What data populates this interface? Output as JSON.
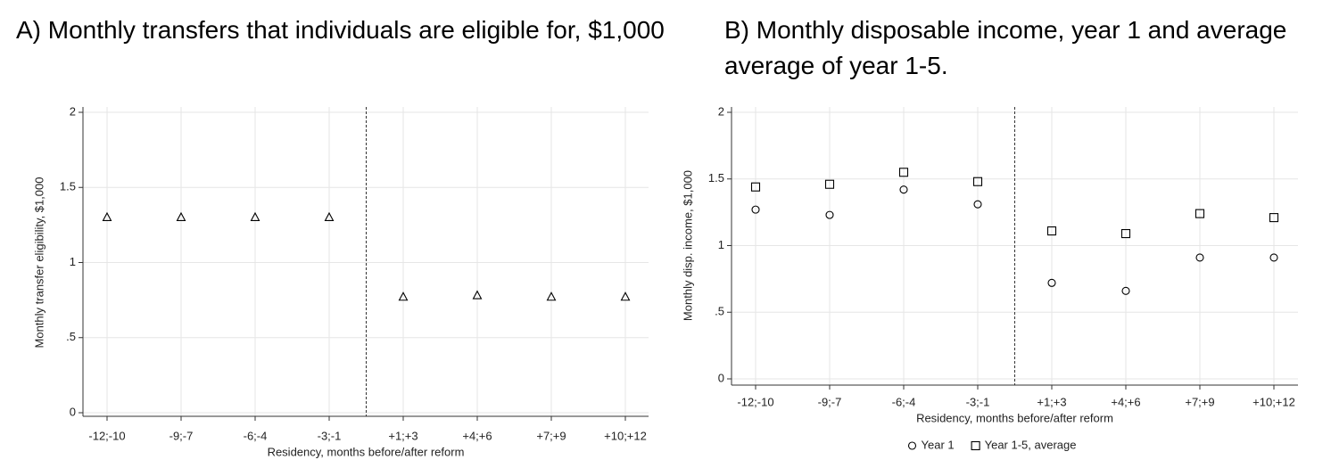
{
  "chart_data": [
    {
      "type": "scatter",
      "title": "A) Monthly transfers that individuals are eligible for, $1,000",
      "x_label": "Residency, months before/after reform",
      "y_label": "Monthly transfer eligibility, $1,000",
      "categories": [
        "-12;-10",
        "-9;-7",
        "-6;-4",
        "-3;-1",
        "+1;+3",
        "+4;+6",
        "+7;+9",
        "+10;+12"
      ],
      "series": [
        {
          "marker": "triangle",
          "color": "#000000",
          "values": [
            1.3,
            1.3,
            1.3,
            1.3,
            0.77,
            0.78,
            0.77,
            0.77
          ]
        }
      ],
      "ylim": [
        0,
        2
      ],
      "yticks": [
        0,
        {
          "value": 0.5,
          "label": ".5"
        },
        1,
        1.5,
        2
      ],
      "grid": true
    },
    {
      "type": "scatter",
      "title": "B) Monthly disposable income, year 1 and average average of year 1-5.",
      "x_label": "Residency, months before/after reform",
      "y_label": "Monthly disp. income, $1,000",
      "categories": [
        "-12;-10",
        "-9;-7",
        "-6;-4",
        "-3;-1",
        "+1;+3",
        "+4;+6",
        "+7;+9",
        "+10;+12"
      ],
      "series": [
        {
          "name": "Year 1",
          "marker": "circle",
          "color": "#000000",
          "values": [
            1.27,
            1.23,
            1.42,
            1.31,
            0.72,
            0.66,
            0.91,
            0.91
          ]
        },
        {
          "name": "Year 1-5, average",
          "marker": "square",
          "color": "#000000",
          "values": [
            1.44,
            1.46,
            1.55,
            1.48,
            1.11,
            1.09,
            1.24,
            1.21
          ]
        }
      ],
      "ylim": [
        0,
        2
      ],
      "yticks": [
        0,
        {
          "value": 0.5,
          "label": ".5"
        },
        1,
        1.5,
        2
      ],
      "grid": true,
      "legend": "bottom"
    }
  ]
}
